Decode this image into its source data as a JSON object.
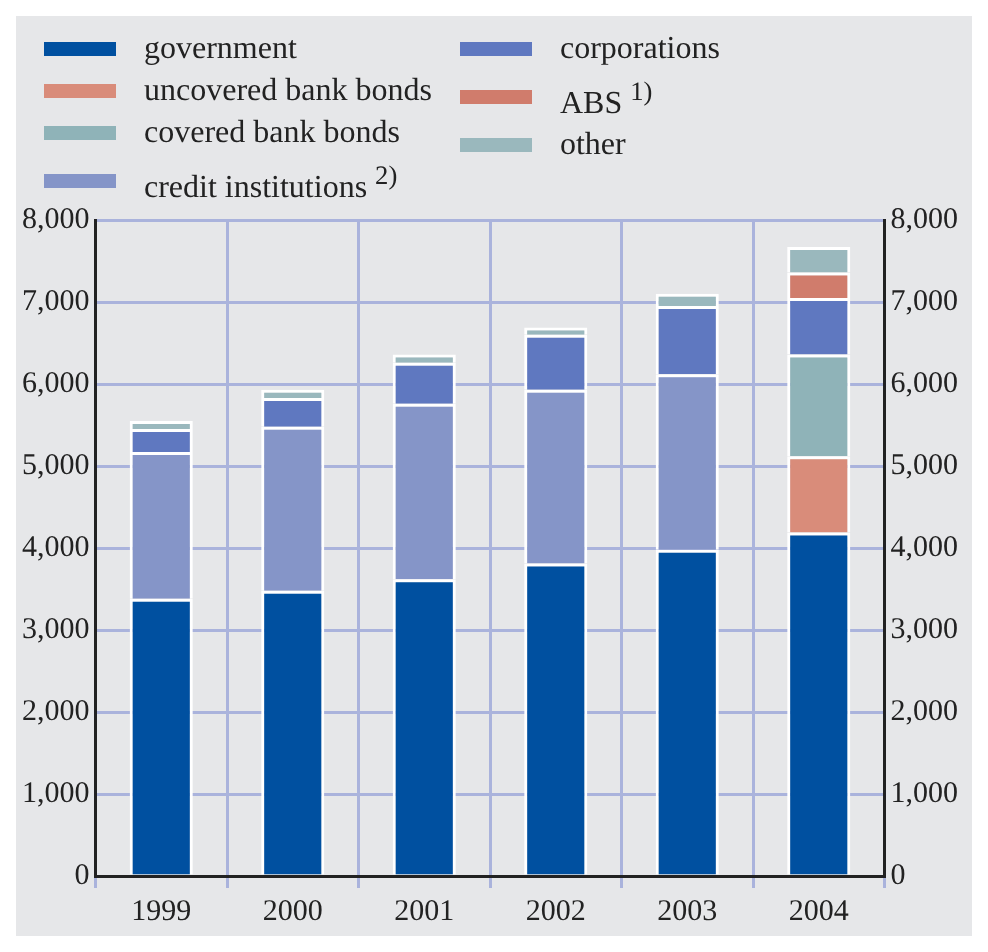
{
  "chart_data": {
    "type": "bar",
    "stacked": true,
    "categories": [
      "1999",
      "2000",
      "2001",
      "2002",
      "2003",
      "2004"
    ],
    "series": [
      {
        "name": "government",
        "color": "#0050a0",
        "values": [
          3380,
          3480,
          3620,
          3810,
          3980,
          4190
        ]
      },
      {
        "name": "uncovered bank bonds",
        "color": "#d98c7a",
        "values": [
          null,
          null,
          null,
          null,
          null,
          930
        ]
      },
      {
        "name": "covered bank bonds",
        "color": "#8fb3b8",
        "values": [
          null,
          null,
          null,
          null,
          null,
          1240
        ]
      },
      {
        "name": "credit institutions $^{2)}$",
        "color": "#8595c8",
        "values": [
          1790,
          2000,
          2140,
          2120,
          2140,
          null
        ]
      },
      {
        "name": "corporations",
        "color": "#5f78c0",
        "values": [
          280,
          350,
          500,
          670,
          830,
          690
        ]
      },
      {
        "name": "ABS $^{1)}$",
        "color": "#d07c6c",
        "values": [
          null,
          null,
          null,
          null,
          null,
          310
        ]
      },
      {
        "name": "other",
        "color": "#9ab8bd",
        "values": [
          100,
          100,
          100,
          90,
          150,
          310
        ]
      }
    ],
    "ylim": [
      0,
      8000
    ],
    "yticks": [
      {
        "value": 0,
        "label": "0"
      },
      {
        "value": 1000,
        "label": "1,000"
      },
      {
        "value": 2000,
        "label": "2,000"
      },
      {
        "value": 3000,
        "label": "3,000"
      },
      {
        "value": 4000,
        "label": "4,000"
      },
      {
        "value": 5000,
        "label": "5,000"
      },
      {
        "value": 6000,
        "label": "6,000"
      },
      {
        "value": 7000,
        "label": "7,000"
      },
      {
        "value": 8000,
        "label": "8,000"
      }
    ],
    "y2lim": [
      0,
      8000
    ],
    "y2ticks": [
      {
        "value": 0,
        "label": "0"
      },
      {
        "value": 1000,
        "label": "1,000"
      },
      {
        "value": 2000,
        "label": "2,000"
      },
      {
        "value": 3000,
        "label": "3,000"
      },
      {
        "value": 4000,
        "label": "4,000"
      },
      {
        "value": 5000,
        "label": "5,000"
      },
      {
        "value": 6000,
        "label": "6,000"
      },
      {
        "value": 7000,
        "label": "7,000"
      },
      {
        "value": 8000,
        "label": "8,000"
      }
    ],
    "grid": true,
    "legend": "top"
  }
}
